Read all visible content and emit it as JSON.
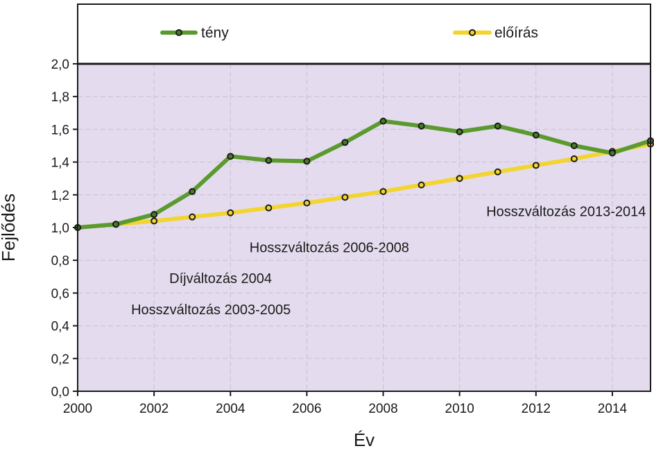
{
  "chart_data": {
    "type": "line",
    "title": "",
    "xlabel": "Év",
    "ylabel": "Fejlődés",
    "xlim": [
      2000,
      2015
    ],
    "ylim": [
      0,
      2.0
    ],
    "x_ticks": [
      2000,
      2002,
      2004,
      2006,
      2008,
      2010,
      2012,
      2014
    ],
    "x_tick_labels": [
      "2000",
      "2002",
      "2004",
      "2006",
      "2008",
      "2010",
      "2012",
      "2014"
    ],
    "y_ticks": [
      0,
      0.2,
      0.4,
      0.6,
      0.8,
      1.0,
      1.2,
      1.4,
      1.6,
      1.8,
      2.0
    ],
    "y_tick_labels": [
      "0,0",
      "0,2",
      "0,4",
      "0,6",
      "0,8",
      "1,0",
      "1,2",
      "1,4",
      "1,6",
      "1,8",
      "2,0"
    ],
    "grid": true,
    "legend_position": "top",
    "plot_background": "#e4dcee",
    "series": [
      {
        "name": "tény",
        "color": "#5a9a2e",
        "marker_fill": "#4a7a2a",
        "x": [
          2000,
          2001,
          2002,
          2003,
          2004,
          2005,
          2006,
          2007,
          2008,
          2009,
          2010,
          2011,
          2012,
          2013,
          2014,
          2015
        ],
        "values": [
          1.0,
          1.02,
          1.08,
          1.22,
          1.435,
          1.41,
          1.405,
          1.52,
          1.65,
          1.62,
          1.585,
          1.62,
          1.565,
          1.5,
          1.455,
          1.53
        ]
      },
      {
        "name": "előírás",
        "color": "#f2d530",
        "marker_fill": "#f2d530",
        "x": [
          2000,
          2001,
          2002,
          2003,
          2004,
          2005,
          2006,
          2007,
          2008,
          2009,
          2010,
          2011,
          2012,
          2013,
          2014,
          2015
        ],
        "values": [
          1.0,
          1.02,
          1.04,
          1.065,
          1.09,
          1.12,
          1.15,
          1.185,
          1.22,
          1.26,
          1.3,
          1.34,
          1.38,
          1.42,
          1.465,
          1.51
        ]
      }
    ],
    "annotations": [
      {
        "text": "Hosszváltozás 2013-2014",
        "x": 2010.7,
        "y": 1.1
      },
      {
        "text": "Hosszváltozás 2006-2008",
        "x": 2004.5,
        "y": 0.88
      },
      {
        "text": "Díjváltozás 2004",
        "x": 2002.4,
        "y": 0.69
      },
      {
        "text": "Hosszváltozás 2003-2005",
        "x": 2001.4,
        "y": 0.5
      }
    ]
  }
}
